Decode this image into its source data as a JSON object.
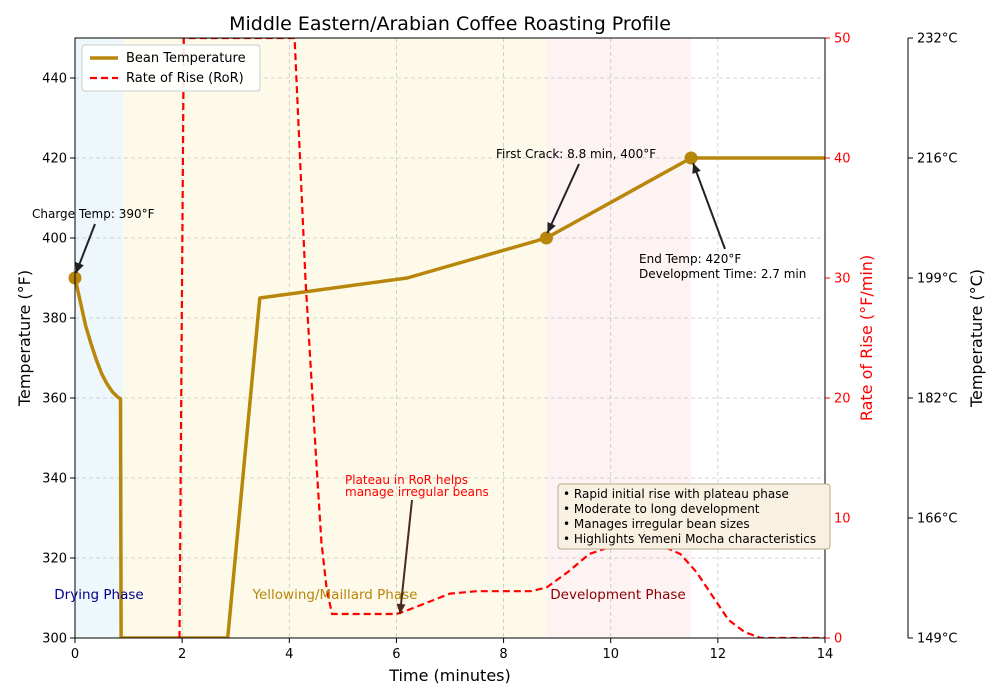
{
  "chart_data": {
    "type": "line",
    "title": "Middle Eastern/Arabian Coffee Roasting Profile",
    "xlabel": "Time (minutes)",
    "ylabel": "Temperature (°F)",
    "y2label": "Rate of Rise (°F/min)",
    "y3label": "Temperature (°C)",
    "xlim": [
      0,
      14
    ],
    "ylim": [
      300,
      450
    ],
    "y2lim": [
      0,
      50
    ],
    "x_ticks": [
      "0",
      "2",
      "4",
      "6",
      "8",
      "10",
      "12",
      "14"
    ],
    "y_ticks": [
      "300",
      "320",
      "340",
      "360",
      "380",
      "400",
      "420",
      "440"
    ],
    "y2_ticks": [
      "0",
      "10",
      "20",
      "30",
      "40",
      "50"
    ],
    "y3_ticks": [
      "149°C",
      "166°C",
      "182°C",
      "199°C",
      "216°C",
      "232°C"
    ],
    "grid": true,
    "legend_position": "upper-left",
    "series": [
      {
        "name": "Bean Temperature",
        "axis": "left",
        "color": "#b8860b",
        "style": "solid",
        "x": [
          0,
          0.1,
          0.2,
          0.3,
          0.4,
          0.5,
          0.6,
          0.7,
          0.8,
          0.85,
          0.86,
          2.85,
          3.45,
          6.2,
          8.8,
          11.5,
          14
        ],
        "y": [
          390,
          384,
          378,
          373.5,
          369.5,
          366,
          363.5,
          361.5,
          360.2,
          359.8,
          300,
          300,
          385,
          390,
          400,
          420,
          420
        ]
      },
      {
        "name": "Rate of Rise (RoR)",
        "axis": "right",
        "color": "#ff0000",
        "style": "dashed",
        "x": [
          1.95,
          2.03,
          4.1,
          4.3,
          4.5,
          4.6,
          4.7,
          4.8,
          6.0,
          6.2,
          6.6,
          7.0,
          7.5,
          8.0,
          8.5,
          8.8,
          9.2,
          9.6,
          10.0,
          10.4,
          11.0,
          11.3,
          11.6,
          11.9,
          12.2,
          12.5,
          12.8,
          14.0
        ],
        "y": [
          0,
          50,
          50,
          30,
          15,
          8,
          4,
          2,
          2,
          2.3,
          3,
          3.7,
          3.9,
          3.9,
          3.9,
          4.2,
          5.5,
          7,
          7.6,
          7.6,
          7.6,
          7,
          5.5,
          3.5,
          1.5,
          0.5,
          0,
          0
        ]
      }
    ],
    "markers": [
      {
        "x": 0,
        "y": 390
      },
      {
        "x": 8.8,
        "y": 400
      },
      {
        "x": 11.5,
        "y": 420
      }
    ],
    "phases": [
      {
        "label": "Drying Phase",
        "x_start": 0,
        "x_end": 0.9,
        "fill": "#cfe8f3",
        "text_color": "#00008b"
      },
      {
        "label": "Yellowing/Maillard Phase",
        "x_start": 0.9,
        "x_end": 8.8,
        "fill": "#fdf1c4",
        "text_color": "#b8860b"
      },
      {
        "label": "Development Phase",
        "x_start": 8.8,
        "x_end": 11.5,
        "fill": "#f9dede",
        "text_color": "#8b0000"
      }
    ],
    "annotations": [
      {
        "text": [
          "Charge Temp: 390°F"
        ],
        "color": "#000000"
      },
      {
        "text": [
          "First Crack: 8.8 min, 400°F"
        ],
        "color": "#000000"
      },
      {
        "text": [
          "End Temp: 420°F",
          "Development Time: 2.7 min"
        ],
        "color": "#000000"
      },
      {
        "text": [
          "Plateau in RoR helps",
          "manage irregular beans"
        ],
        "color": "#ff0000"
      }
    ],
    "notes_box": [
      "• Rapid initial rise with plateau phase",
      "• Moderate to long development",
      "• Manages irregular bean sizes",
      "• Highlights Yemeni Mocha characteristics"
    ]
  }
}
